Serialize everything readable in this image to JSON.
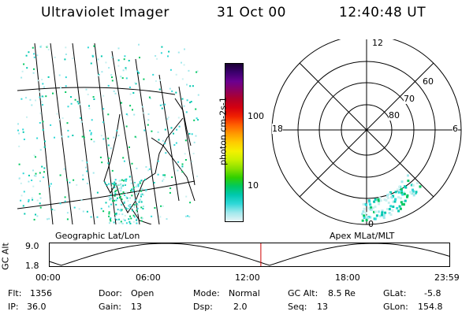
{
  "header": {
    "instrument": "Ultraviolet Imager",
    "date": "31 Oct 00",
    "time": "12:40:48 UT"
  },
  "colorbar": {
    "unit_label": "photon cm-2s-1",
    "tick_labels": [
      "100",
      "10"
    ],
    "colors": [
      "#1a0033",
      "#3c006e",
      "#6a0090",
      "#8c0060",
      "#b0002a",
      "#d40010",
      "#f02000",
      "#ff6000",
      "#ff9a00",
      "#ffcc00",
      "#f4f000",
      "#c8f000",
      "#88e000",
      "#30d000",
      "#00c860",
      "#00c8b0",
      "#30d8d8",
      "#a0e8ec",
      "#e8f4f6"
    ]
  },
  "polar_plot": {
    "mlt_labels": {
      "top": "12",
      "left": "18",
      "right": "6",
      "bottom": "0"
    },
    "lat_labels": [
      "60",
      "70",
      "80"
    ]
  },
  "orbit_panel": {
    "left_caption": "Geographic Lat/Lon",
    "right_caption": "Apex MLat/MLT",
    "ylabel": "GC Alt",
    "y_ticks": [
      "9.0",
      "1.8"
    ],
    "x_ticks": [
      "00:00",
      "06:00",
      "12:00",
      "18:00",
      "23:59"
    ],
    "marker_time": "12:40:48"
  },
  "status": {
    "flt_label": "Flt:",
    "flt_value": "1356",
    "ip_label": "IP:",
    "ip_value": "36.0",
    "door_label": "Door:",
    "door_value": "Open",
    "gain_label": "Gain:",
    "gain_value": "13",
    "mode_label": "Mode:",
    "mode_value": "Normal",
    "dsp_label": "Dsp:",
    "dsp_value": "2.0",
    "gcalt_label": "GC Alt:",
    "gcalt_value": "8.5 Re",
    "seq_label": "Seq:",
    "seq_value": "13",
    "glat_label": "GLat:",
    "glat_value": "-5.8",
    "glon_label": "GLon:",
    "glon_value": "154.8"
  },
  "colors": {
    "marker": "#d00000",
    "background": "#ffffff"
  }
}
